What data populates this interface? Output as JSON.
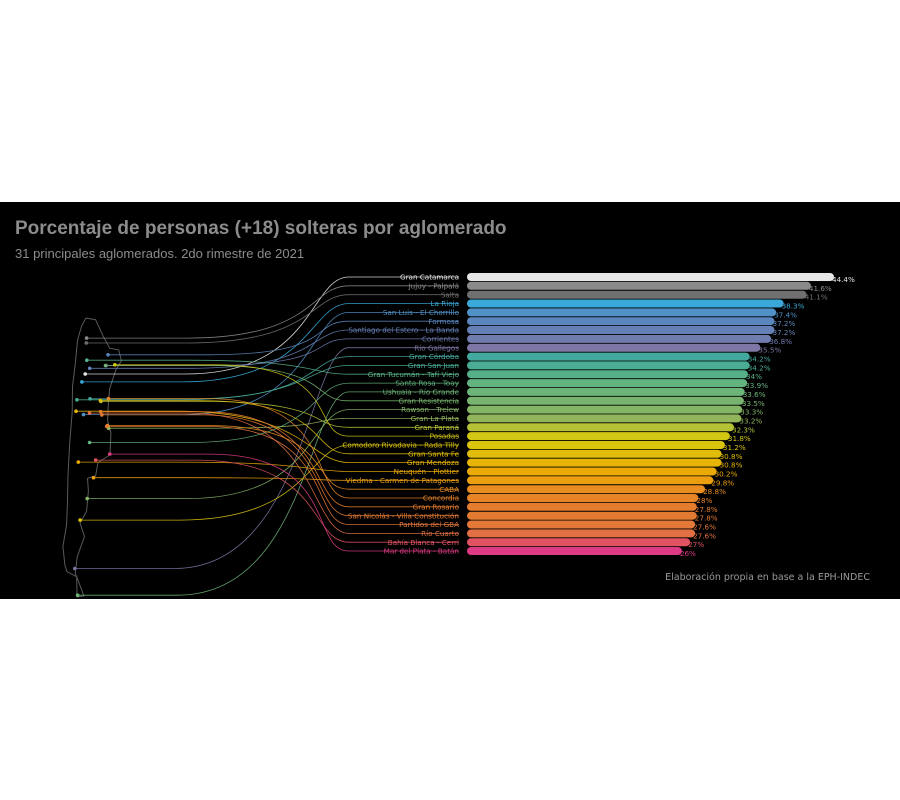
{
  "title": "Porcentaje de personas (+18) solteras por aglomerado",
  "subtitle": "31 principales aglomerados. 2do rimestre de 2021",
  "caption": "Elaboración propia en base a la EPH-INDEC",
  "chart_data": {
    "type": "bar",
    "orientation": "horizontal",
    "unit": "%",
    "categories": [
      "Gran Catamarca",
      "Jujuy - Palpalá",
      "Salta",
      "La Rioja",
      "San Luis - El Chorrillo",
      "Formosa",
      "Santiago del Estero - La Banda",
      "Corrientes",
      "Río Gallegos",
      "Gran Córdoba",
      "Gran San Juan",
      "Gran Tucumán - Tafí Viejo",
      "Santa Rosa - Toay",
      "Ushuaia - Río Grande",
      "Gran Resistencia",
      "Rawson - Trelew",
      "Gran La Plata",
      "Gran Paraná",
      "Posadas",
      "Comodoro Rivadavia - Rada Tilly",
      "Gran Santa Fe",
      "Gran Mendoza",
      "Neuquén - Plottier",
      "Viedma - Carmen de Patagones",
      "CABA",
      "Concordia",
      "Gran Rosario",
      "San Nicolás - Villa Constitución",
      "Partidos del GBA",
      "Río Cuarto",
      "Bahía Blanca - Cerri",
      "Mar del Plata - Batán"
    ],
    "values": [
      44.4,
      41.6,
      41.1,
      38.3,
      37.4,
      37.2,
      37.2,
      36.8,
      35.5,
      34.2,
      34.2,
      34,
      33.9,
      33.6,
      33.5,
      33.3,
      33.2,
      32.3,
      31.8,
      31.2,
      30.8,
      30.8,
      30.2,
      29.8,
      28.8,
      28,
      27.8,
      27.8,
      27.6,
      27.6,
      27,
      26
    ],
    "value_labels": [
      "44.4%",
      "41.6%",
      "41.1%",
      "38.3%",
      "37.4%",
      "37.2%",
      "37.2%",
      "36.8%",
      "35.5%",
      "34.2%",
      "34.2%",
      "34%",
      "33.9%",
      "33.6%",
      "33.5%",
      "33.3%",
      "33.2%",
      "32.3%",
      "31.8%",
      "31.2%",
      "30.8%",
      "30.8%",
      "30.2%",
      "29.8%",
      "28.8%",
      "28%",
      "27.8%",
      "27.8%",
      "27.6%",
      "27.6%",
      "27%",
      "26%"
    ],
    "colors": [
      "#e6e6e6",
      "#8a8a8a",
      "#707070",
      "#3aa8d8",
      "#4f91c6",
      "#5a86bd",
      "#6580b5",
      "#707bae",
      "#7e76a4",
      "#43a89e",
      "#4aac94",
      "#55b08a",
      "#62b380",
      "#6db478",
      "#78b46f",
      "#84b466",
      "#92b55b",
      "#b5c236",
      "#d2c814",
      "#dac40e",
      "#e0bd0a",
      "#e6b507",
      "#ebaa06",
      "#eb9f10",
      "#e98d20",
      "#e88428",
      "#e67c2e",
      "#e37a32",
      "#e47838",
      "#e37045",
      "#e15360",
      "#dc3a82"
    ],
    "map_points": [
      {
        "name": "Gran Catamarca",
        "lon": -65.78,
        "lat": -28.47
      },
      {
        "name": "Jujuy - Palpalá",
        "lon": -65.3,
        "lat": -24.19
      },
      {
        "name": "Salta",
        "lon": -65.41,
        "lat": -24.78
      },
      {
        "name": "La Rioja",
        "lon": -66.86,
        "lat": -29.41
      },
      {
        "name": "San Luis - El Chorrillo",
        "lon": -66.34,
        "lat": -33.3
      },
      {
        "name": "Formosa",
        "lon": -58.17,
        "lat": -26.18
      },
      {
        "name": "Santiago del Estero - La Banda",
        "lon": -64.26,
        "lat": -27.79
      },
      {
        "name": "Corrientes",
        "lon": -58.83,
        "lat": -27.47
      },
      {
        "name": "Río Gallegos",
        "lon": -69.22,
        "lat": -51.62
      },
      {
        "name": "Gran Córdoba",
        "lon": -64.18,
        "lat": -31.42
      },
      {
        "name": "Gran San Juan",
        "lon": -68.54,
        "lat": -31.54
      },
      {
        "name": "Gran Tucumán - Tafí Viejo",
        "lon": -65.22,
        "lat": -26.82
      },
      {
        "name": "Santa Rosa - Toay",
        "lon": -64.29,
        "lat": -36.62
      },
      {
        "name": "Ushuaia - Río Grande",
        "lon": -68.3,
        "lat": -54.8
      },
      {
        "name": "Gran Resistencia",
        "lon": -58.99,
        "lat": -27.45
      },
      {
        "name": "Rawson - Trelew",
        "lon": -65.1,
        "lat": -43.3
      },
      {
        "name": "Gran La Plata",
        "lon": -57.95,
        "lat": -34.92
      },
      {
        "name": "Gran Paraná",
        "lon": -60.52,
        "lat": -31.73
      },
      {
        "name": "Posadas",
        "lon": -55.9,
        "lat": -27.37
      },
      {
        "name": "Comodoro Rivadavia - Rada Tilly",
        "lon": -67.48,
        "lat": -45.86
      },
      {
        "name": "Gran Santa Fe",
        "lon": -60.7,
        "lat": -31.63
      },
      {
        "name": "Gran Mendoza",
        "lon": -68.84,
        "lat": -32.89
      },
      {
        "name": "Neuquén - Plottier",
        "lon": -68.06,
        "lat": -38.95
      },
      {
        "name": "Viedma - Carmen de Patagones",
        "lon": -62.99,
        "lat": -40.81
      },
      {
        "name": "CABA",
        "lon": -58.38,
        "lat": -34.6
      },
      {
        "name": "Concordia",
        "lon": -58.02,
        "lat": -31.39
      },
      {
        "name": "Gran Rosario",
        "lon": -60.64,
        "lat": -32.95
      },
      {
        "name": "San Nicolás - Villa Constitución",
        "lon": -60.22,
        "lat": -33.33
      },
      {
        "name": "Partidos del GBA",
        "lon": -58.6,
        "lat": -34.7
      },
      {
        "name": "Río Cuarto",
        "lon": -64.35,
        "lat": -33.12
      },
      {
        "name": "Bahía Blanca - Cerri",
        "lon": -62.27,
        "lat": -38.72
      },
      {
        "name": "Mar del Plata - Batán",
        "lon": -57.56,
        "lat": -38.0
      }
    ]
  }
}
